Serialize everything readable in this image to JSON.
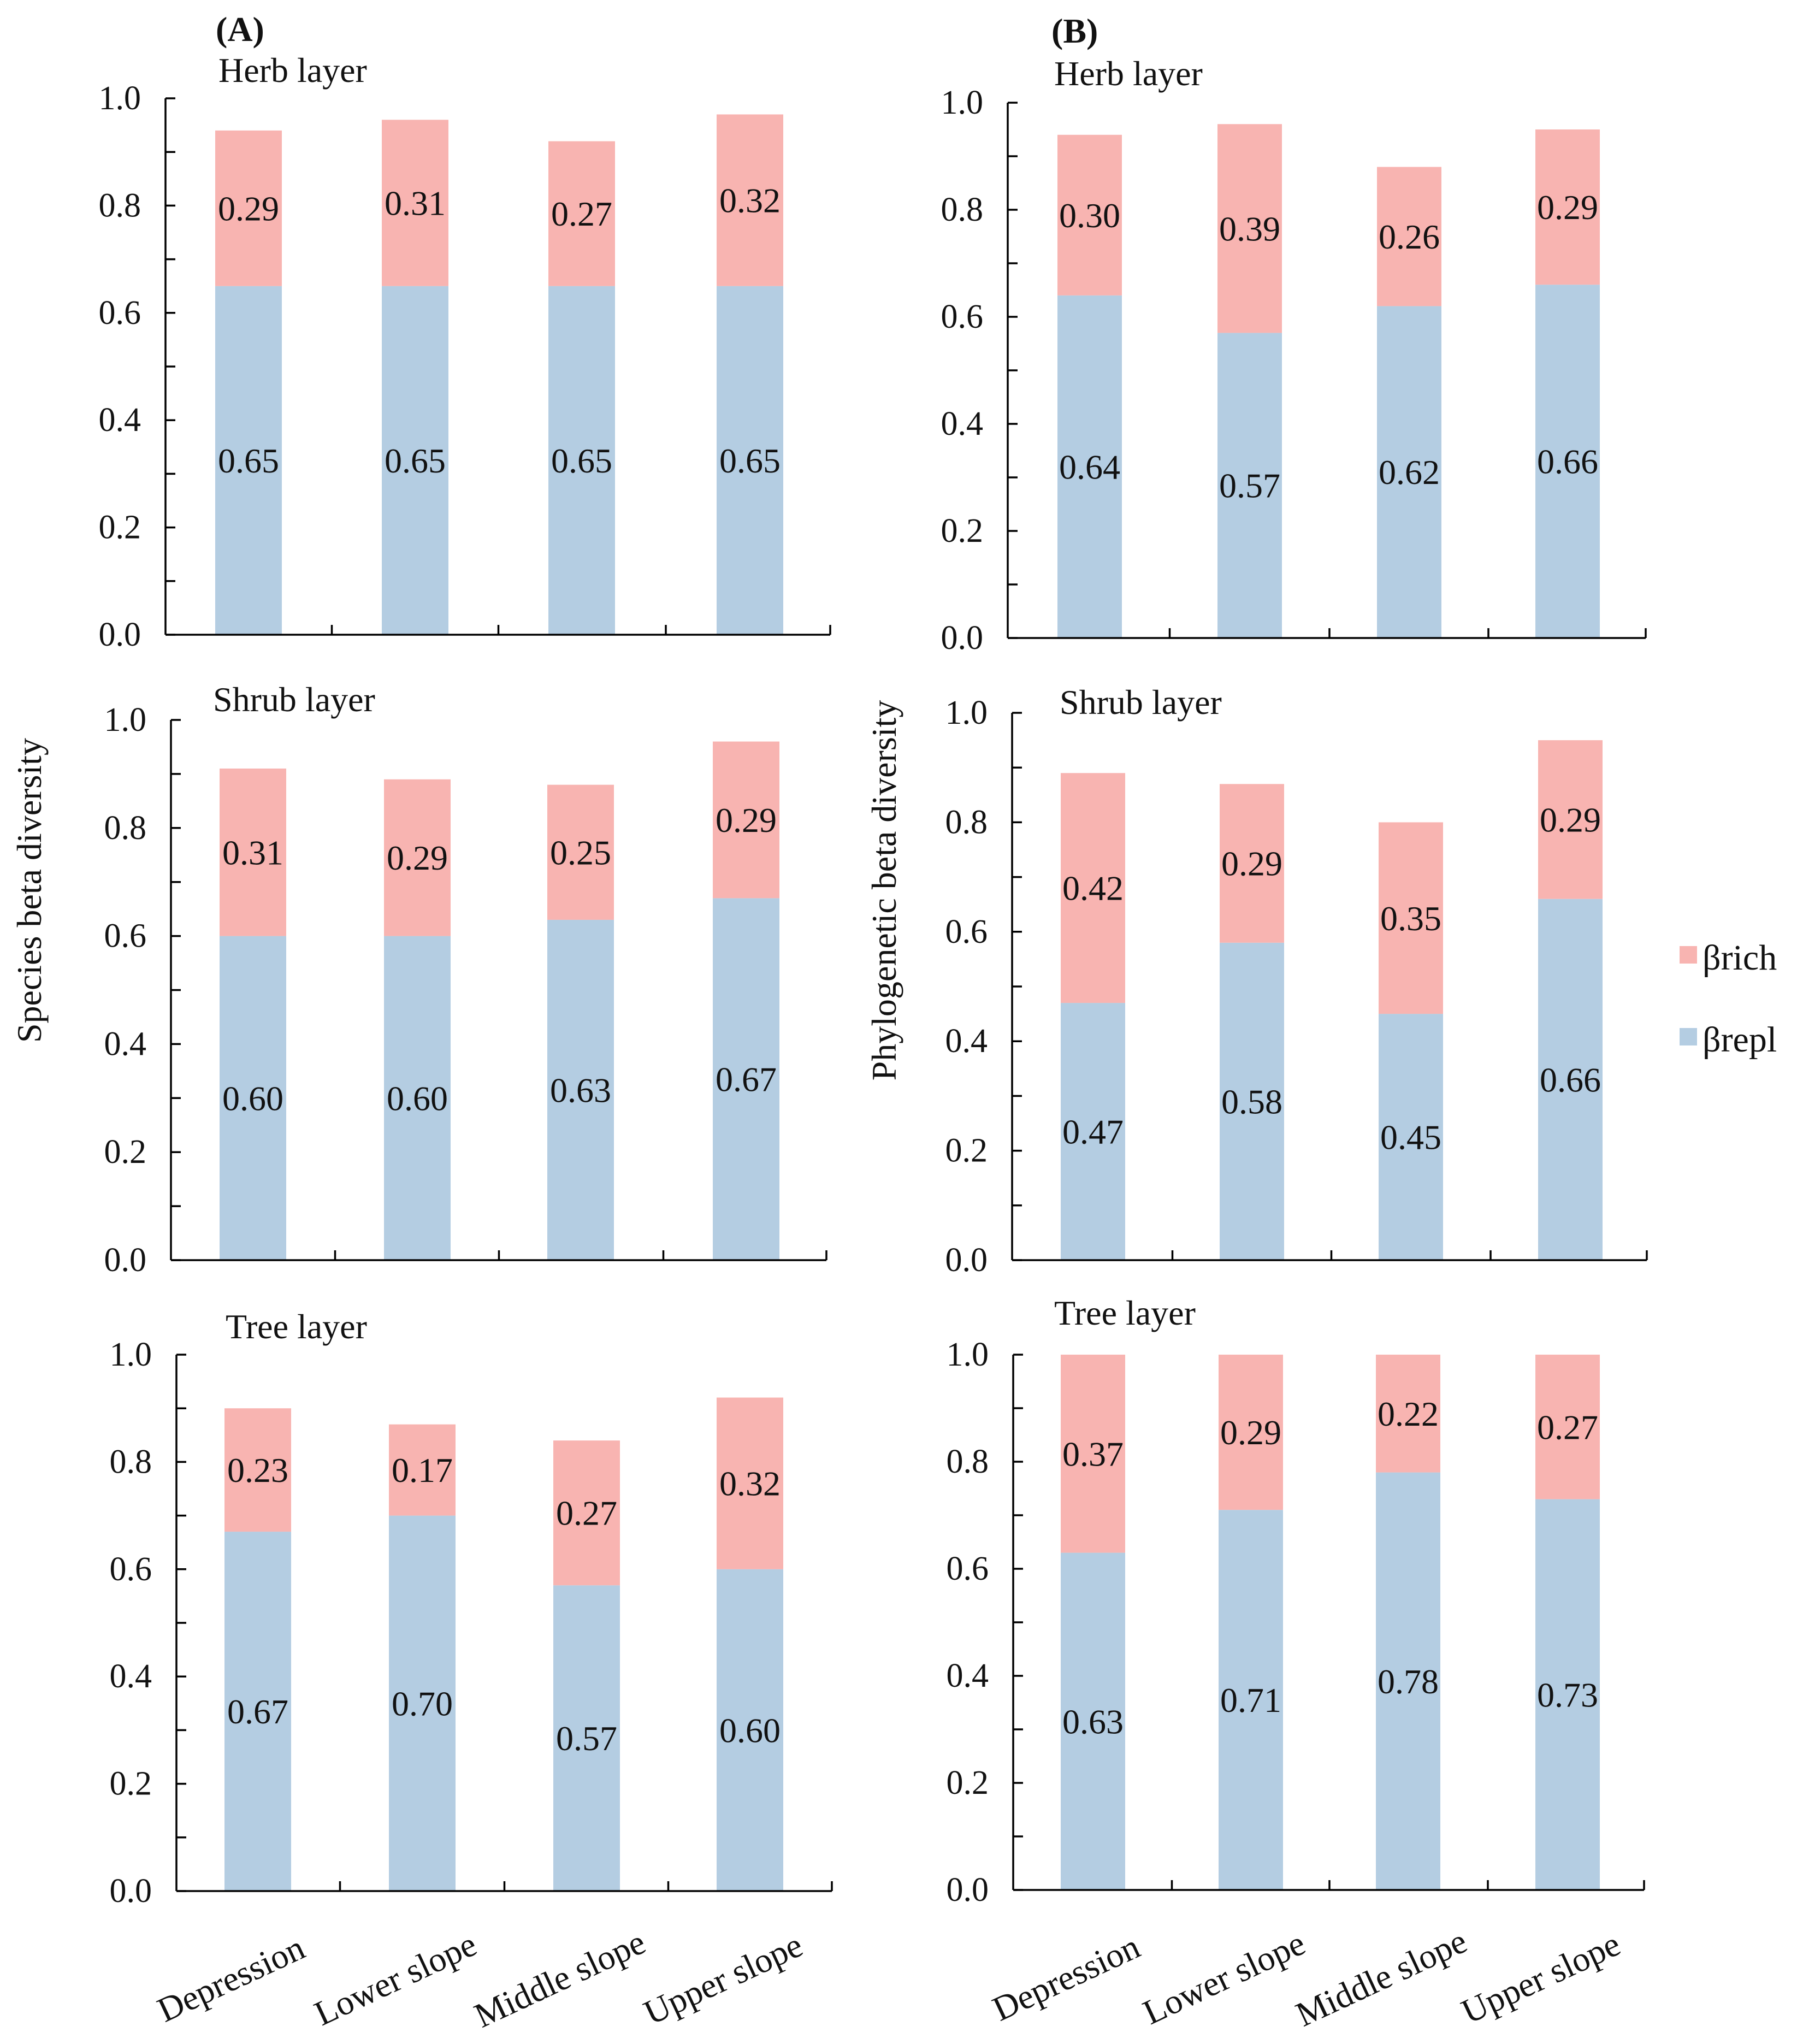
{
  "colors": {
    "rich": "#f8b4b1",
    "repl": "#b4cde2"
  },
  "legend": {
    "rich_label": "βrich",
    "repl_label": "βrepl"
  },
  "columns": [
    {
      "letter": "(A)",
      "ylabel": "Species beta diversity"
    },
    {
      "letter": "(B)",
      "ylabel": "Phylogenetic beta diversity"
    }
  ],
  "chart_data": [
    {
      "type": "bar",
      "stacked": true,
      "column": 0,
      "row": 0,
      "title": "Herb layer",
      "categories": [
        "Depression",
        "Lower slope",
        "Middle slope",
        "Upper slope"
      ],
      "series": [
        {
          "name": "βrepl",
          "values": [
            0.65,
            0.65,
            0.65,
            0.65
          ]
        },
        {
          "name": "βrich",
          "values": [
            0.29,
            0.31,
            0.27,
            0.32
          ]
        }
      ],
      "yticks": [
        "0.0",
        "0.2",
        "0.4",
        "0.6",
        "0.8",
        "1.0"
      ],
      "ylim": [
        0,
        1
      ],
      "ylabel": "Species beta diversity"
    },
    {
      "type": "bar",
      "stacked": true,
      "column": 0,
      "row": 1,
      "title": "Shrub layer",
      "categories": [
        "Depression",
        "Lower slope",
        "Middle slope",
        "Upper slope"
      ],
      "series": [
        {
          "name": "βrepl",
          "values": [
            0.6,
            0.6,
            0.63,
            0.67
          ]
        },
        {
          "name": "βrich",
          "values": [
            0.31,
            0.29,
            0.25,
            0.29
          ]
        }
      ],
      "yticks": [
        "0.0",
        "0.2",
        "0.4",
        "0.6",
        "0.8",
        "1.0"
      ],
      "ylim": [
        0,
        1
      ],
      "ylabel": "Species beta diversity"
    },
    {
      "type": "bar",
      "stacked": true,
      "column": 0,
      "row": 2,
      "title": "Tree layer",
      "categories": [
        "Depression",
        "Lower slope",
        "Middle slope",
        "Upper slope"
      ],
      "series": [
        {
          "name": "βrepl",
          "values": [
            0.67,
            0.7,
            0.57,
            0.6
          ]
        },
        {
          "name": "βrich",
          "values": [
            0.23,
            0.17,
            0.27,
            0.32
          ]
        }
      ],
      "yticks": [
        "0.0",
        "0.2",
        "0.4",
        "0.6",
        "0.8",
        "1.0"
      ],
      "ylim": [
        0,
        1
      ],
      "ylabel": "Species beta diversity"
    },
    {
      "type": "bar",
      "stacked": true,
      "column": 1,
      "row": 0,
      "title": "Herb layer",
      "categories": [
        "Depression",
        "Lower slope",
        "Middle slope",
        "Upper slope"
      ],
      "series": [
        {
          "name": "βrepl",
          "values": [
            0.64,
            0.57,
            0.62,
            0.66
          ]
        },
        {
          "name": "βrich",
          "values": [
            0.3,
            0.39,
            0.26,
            0.29
          ]
        }
      ],
      "yticks": [
        "0.0",
        "0.2",
        "0.4",
        "0.6",
        "0.8",
        "1.0"
      ],
      "ylim": [
        0,
        1
      ],
      "ylabel": "Phylogenetic beta diversity"
    },
    {
      "type": "bar",
      "stacked": true,
      "column": 1,
      "row": 1,
      "title": "Shrub layer",
      "categories": [
        "Depression",
        "Lower slope",
        "Middle slope",
        "Upper slope"
      ],
      "series": [
        {
          "name": "βrepl",
          "values": [
            0.47,
            0.58,
            0.45,
            0.66
          ]
        },
        {
          "name": "βrich",
          "values": [
            0.42,
            0.29,
            0.35,
            0.29
          ]
        }
      ],
      "yticks": [
        "0.0",
        "0.2",
        "0.4",
        "0.6",
        "0.8",
        "1.0"
      ],
      "ylim": [
        0,
        1
      ],
      "ylabel": "Phylogenetic beta diversity"
    },
    {
      "type": "bar",
      "stacked": true,
      "column": 1,
      "row": 2,
      "title": "Tree layer",
      "categories": [
        "Depression",
        "Lower slope",
        "Middle slope",
        "Upper slope"
      ],
      "series": [
        {
          "name": "βrepl",
          "values": [
            0.63,
            0.71,
            0.78,
            0.73
          ]
        },
        {
          "name": "βrich",
          "values": [
            0.37,
            0.29,
            0.22,
            0.27
          ]
        }
      ],
      "yticks": [
        "0.0",
        "0.2",
        "0.4",
        "0.6",
        "0.8",
        "1.0"
      ],
      "ylim": [
        0,
        1
      ],
      "ylabel": "Phylogenetic beta diversity"
    }
  ]
}
